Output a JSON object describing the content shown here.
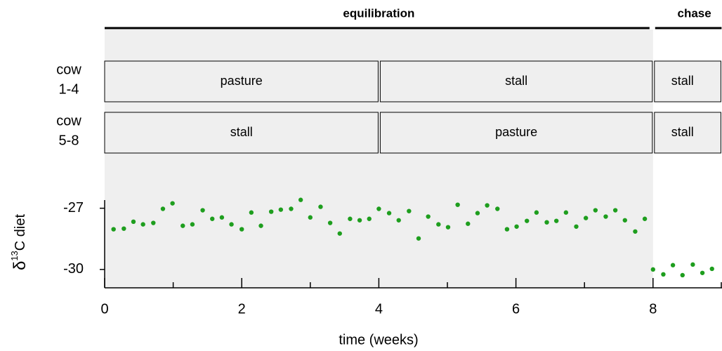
{
  "chart_data": {
    "type": "scatter",
    "x_label": "time (weeks)",
    "y_label_parts": [
      "δ",
      "13",
      "C diet"
    ],
    "xlim": [
      0,
      9
    ],
    "ylim": [
      -30.9,
      -26.6
    ],
    "xticks": [
      0,
      2,
      4,
      6,
      8
    ],
    "xminor_ticks": [
      1,
      3,
      5,
      7,
      9
    ],
    "yticks": [
      -27,
      -30
    ],
    "phases": [
      {
        "label": "equilibration",
        "start": 0,
        "end": 8,
        "shaded": true
      },
      {
        "label": "chase",
        "start": 8,
        "end": 9,
        "shaded": false
      }
    ],
    "diet_rows": [
      {
        "label": [
          "cow",
          "1-4"
        ],
        "segments": [
          {
            "label": "pasture",
            "start": 0,
            "end": 4
          },
          {
            "label": "stall",
            "start": 4,
            "end": 8
          },
          {
            "label": "stall",
            "start": 8,
            "end": 9
          }
        ]
      },
      {
        "label": [
          "cow",
          "5-8"
        ],
        "segments": [
          {
            "label": "stall",
            "start": 0,
            "end": 4
          },
          {
            "label": "pasture",
            "start": 4,
            "end": 8
          },
          {
            "label": "stall",
            "start": 8,
            "end": 9
          }
        ]
      }
    ],
    "series": [
      {
        "color": "#1e9e1e",
        "x": [
          0.13,
          0.28,
          0.42,
          0.56,
          0.71,
          0.85,
          0.99,
          1.14,
          1.28,
          1.43,
          1.57,
          1.71,
          1.85,
          2.0,
          2.14,
          2.28,
          2.43,
          2.57,
          2.72,
          2.86,
          3.0,
          3.15,
          3.29,
          3.43,
          3.58,
          3.72,
          3.86,
          4.0,
          4.15,
          4.29,
          4.44,
          4.58,
          4.72,
          4.87,
          5.01,
          5.15,
          5.3,
          5.44,
          5.58,
          5.73,
          5.87,
          6.01,
          6.16,
          6.3,
          6.45,
          6.59,
          6.73,
          6.88,
          7.02,
          7.16,
          7.31,
          7.45,
          7.59,
          7.74,
          7.88,
          8.0,
          8.15,
          8.29,
          8.43,
          8.58,
          8.72,
          8.86
        ],
        "values": [
          -28.03,
          -28.0,
          -27.66,
          -27.79,
          -27.72,
          -27.03,
          -26.76,
          -27.86,
          -27.79,
          -27.1,
          -27.52,
          -27.45,
          -27.79,
          -28.03,
          -27.21,
          -27.86,
          -27.17,
          -27.07,
          -27.03,
          -26.59,
          -27.45,
          -26.93,
          -27.72,
          -28.24,
          -27.52,
          -27.59,
          -27.52,
          -27.03,
          -27.24,
          -27.59,
          -27.14,
          -28.48,
          -27.41,
          -27.79,
          -27.93,
          -26.83,
          -27.76,
          -27.24,
          -26.86,
          -27.03,
          -28.03,
          -27.9,
          -27.62,
          -27.21,
          -27.69,
          -27.62,
          -27.21,
          -27.9,
          -27.48,
          -27.1,
          -27.41,
          -27.1,
          -27.59,
          -28.14,
          -27.52,
          -30.0,
          -30.24,
          -29.79,
          -30.28,
          -29.76,
          -30.17,
          -29.97
        ]
      }
    ]
  }
}
